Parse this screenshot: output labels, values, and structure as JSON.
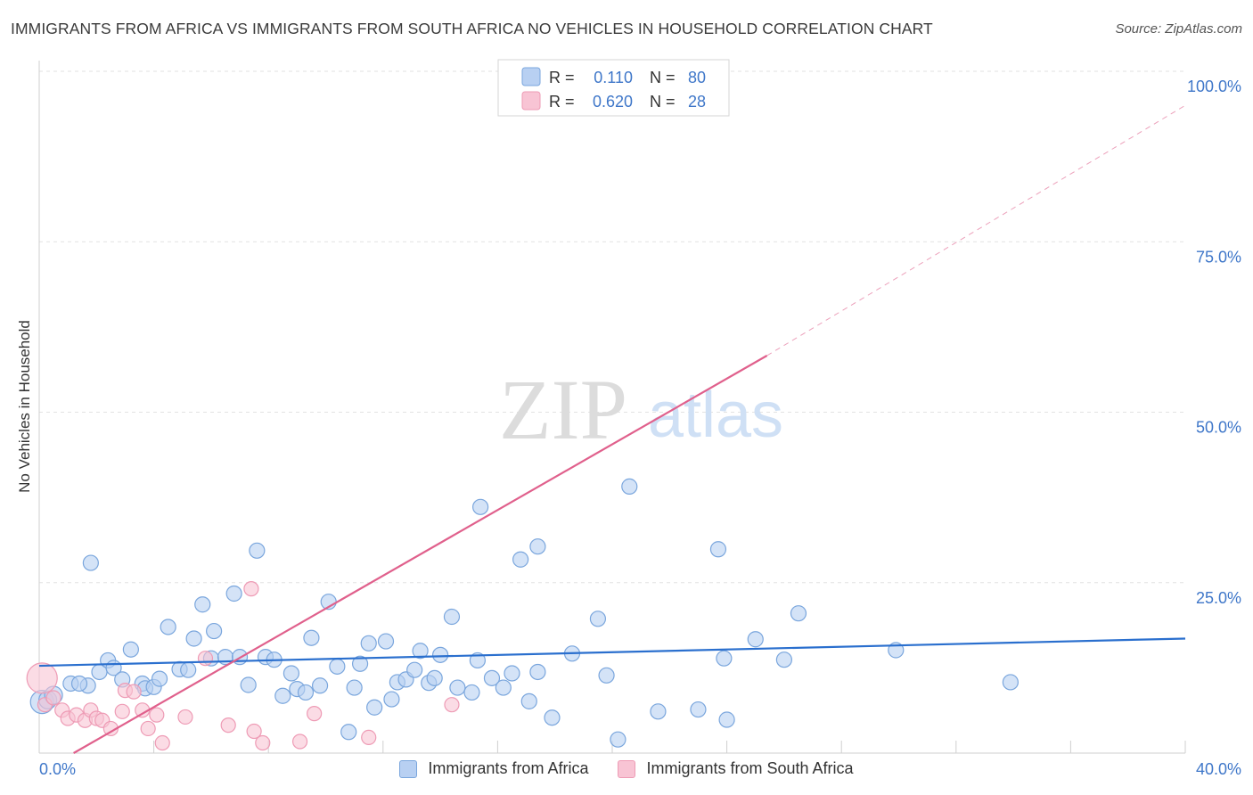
{
  "header": {
    "title": "IMMIGRANTS FROM AFRICA VS IMMIGRANTS FROM SOUTH AFRICA NO VEHICLES IN HOUSEHOLD CORRELATION CHART",
    "source": "Source: ZipAtlas.com"
  },
  "watermark": {
    "zip": "ZIP",
    "atlas": "atlas"
  },
  "colors": {
    "blue_fill": "#b8d0f2",
    "blue_stroke": "#7aa6dd",
    "blue_line": "#2a6fce",
    "pink_fill": "#f8c4d4",
    "pink_stroke": "#ee9bb5",
    "pink_line": "#e0608c",
    "value_text": "#3f77c9",
    "grid": "#e2e2e2"
  },
  "stats_legend": {
    "rows": [
      {
        "r_label": "R =",
        "r_value": "0.110",
        "n_label": "N =",
        "n_value": "80"
      },
      {
        "r_label": "R =",
        "r_value": "0.620",
        "n_label": "N =",
        "n_value": "28"
      }
    ]
  },
  "chart_data": {
    "type": "scatter",
    "title": "IMMIGRANTS FROM AFRICA VS IMMIGRANTS FROM SOUTH AFRICA NO VEHICLES IN HOUSEHOLD CORRELATION CHART",
    "xlabel": "",
    "ylabel": "No Vehicles in Household",
    "xlim": [
      0,
      40
    ],
    "ylim": [
      0,
      100
    ],
    "x_tick_labels": [
      "0.0%",
      "40.0%"
    ],
    "y_ticks": [
      25,
      50,
      75,
      100
    ],
    "y_tick_labels": [
      "25.0%",
      "50.0%",
      "75.0%",
      "100.0%"
    ],
    "grid": true,
    "legend_position": "bottom",
    "series": [
      {
        "name": "Immigrants from Africa",
        "color": "blue",
        "r": 0.11,
        "n": 80,
        "trend": {
          "x": [
            0,
            40
          ],
          "y": [
            12.8,
            16.8
          ]
        },
        "points": [
          [
            0.1,
            7.5
          ],
          [
            0.3,
            7.8
          ],
          [
            0.5,
            8.5
          ],
          [
            1.7,
            9.9
          ],
          [
            1.1,
            10.2
          ],
          [
            1.4,
            10.2
          ],
          [
            1.8,
            27.9
          ],
          [
            2.1,
            11.9
          ],
          [
            2.4,
            13.6
          ],
          [
            2.6,
            12.5
          ],
          [
            2.9,
            10.8
          ],
          [
            3.2,
            15.2
          ],
          [
            3.6,
            10.2
          ],
          [
            3.7,
            9.5
          ],
          [
            4.0,
            9.7
          ],
          [
            4.2,
            10.9
          ],
          [
            4.5,
            18.5
          ],
          [
            4.9,
            12.3
          ],
          [
            5.2,
            12.2
          ],
          [
            5.4,
            16.8
          ],
          [
            5.7,
            21.8
          ],
          [
            6.0,
            13.9
          ],
          [
            6.1,
            17.9
          ],
          [
            6.5,
            14.1
          ],
          [
            6.8,
            23.4
          ],
          [
            7.0,
            14.1
          ],
          [
            7.3,
            10.0
          ],
          [
            7.6,
            29.7
          ],
          [
            7.9,
            14.1
          ],
          [
            8.2,
            13.7
          ],
          [
            8.5,
            8.4
          ],
          [
            8.8,
            11.7
          ],
          [
            9.0,
            9.4
          ],
          [
            9.3,
            8.9
          ],
          [
            9.5,
            16.9
          ],
          [
            9.8,
            9.9
          ],
          [
            10.1,
            22.2
          ],
          [
            10.4,
            12.7
          ],
          [
            10.8,
            3.1
          ],
          [
            11.0,
            9.6
          ],
          [
            11.2,
            13.1
          ],
          [
            11.5,
            16.1
          ],
          [
            11.7,
            6.7
          ],
          [
            12.1,
            16.4
          ],
          [
            12.3,
            7.9
          ],
          [
            12.5,
            10.4
          ],
          [
            12.8,
            10.8
          ],
          [
            13.1,
            12.2
          ],
          [
            13.3,
            15.0
          ],
          [
            13.6,
            10.3
          ],
          [
            13.8,
            11.0
          ],
          [
            14.0,
            14.4
          ],
          [
            14.4,
            20.0
          ],
          [
            14.6,
            9.6
          ],
          [
            15.1,
            8.9
          ],
          [
            15.3,
            13.6
          ],
          [
            15.4,
            36.1
          ],
          [
            15.8,
            11.0
          ],
          [
            16.2,
            9.6
          ],
          [
            16.5,
            11.7
          ],
          [
            16.8,
            28.4
          ],
          [
            17.1,
            7.6
          ],
          [
            17.4,
            30.3
          ],
          [
            17.4,
            11.9
          ],
          [
            17.9,
            5.2
          ],
          [
            18.6,
            14.6
          ],
          [
            19.5,
            19.7
          ],
          [
            19.8,
            11.4
          ],
          [
            20.2,
            2.0
          ],
          [
            20.6,
            39.1
          ],
          [
            21.6,
            6.1
          ],
          [
            23.0,
            6.4
          ],
          [
            23.7,
            29.9
          ],
          [
            24.0,
            4.9
          ],
          [
            25.0,
            16.7
          ],
          [
            23.9,
            13.9
          ],
          [
            26.0,
            13.7
          ],
          [
            26.5,
            20.5
          ],
          [
            29.9,
            15.1
          ],
          [
            33.9,
            10.4
          ]
        ]
      },
      {
        "name": "Immigrants from South Africa",
        "color": "pink",
        "r": 0.62,
        "n": 28,
        "trend": {
          "x": [
            1.2,
            25.4
          ],
          "y": [
            0.0,
            58.3
          ]
        },
        "trend_extension": {
          "x": [
            25.4,
            40
          ],
          "y": [
            58.3,
            95.0
          ]
        },
        "points": [
          [
            0.1,
            11.0
          ],
          [
            0.2,
            7.1
          ],
          [
            0.5,
            8.1
          ],
          [
            0.8,
            6.3
          ],
          [
            1.0,
            5.1
          ],
          [
            1.3,
            5.6
          ],
          [
            1.6,
            4.8
          ],
          [
            1.8,
            6.3
          ],
          [
            2.0,
            5.1
          ],
          [
            2.2,
            4.8
          ],
          [
            2.5,
            3.6
          ],
          [
            2.9,
            6.1
          ],
          [
            3.0,
            9.2
          ],
          [
            3.3,
            9.0
          ],
          [
            3.6,
            6.3
          ],
          [
            3.8,
            3.6
          ],
          [
            4.1,
            5.6
          ],
          [
            4.3,
            1.5
          ],
          [
            5.1,
            5.3
          ],
          [
            5.8,
            13.9
          ],
          [
            6.6,
            4.1
          ],
          [
            7.4,
            24.1
          ],
          [
            7.5,
            3.2
          ],
          [
            7.8,
            1.5
          ],
          [
            9.1,
            1.7
          ],
          [
            9.6,
            5.8
          ],
          [
            11.5,
            2.3
          ],
          [
            14.4,
            7.1
          ]
        ]
      }
    ]
  }
}
